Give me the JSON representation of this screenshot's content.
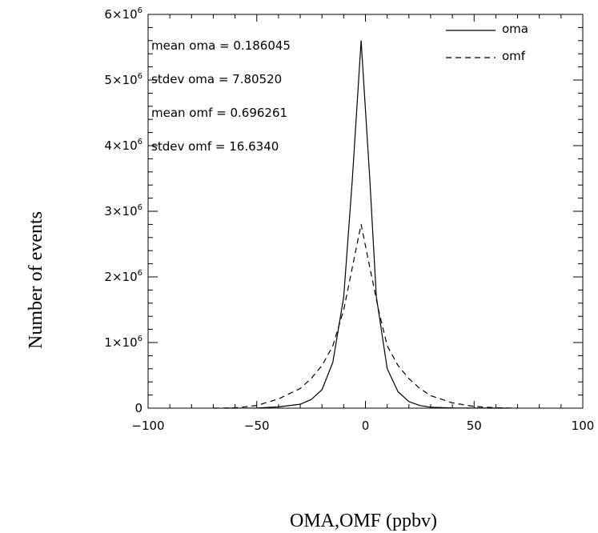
{
  "chart_data": {
    "type": "line",
    "xlabel": "OMA,OMF (ppbv)",
    "ylabel": "Number of events",
    "xlim": [
      -100,
      100
    ],
    "ylim": [
      0,
      6000000
    ],
    "grid": false,
    "legend_position": "top-right",
    "x_ticks": [
      {
        "value": -100,
        "label": "−100"
      },
      {
        "value": -50,
        "label": "−50"
      },
      {
        "value": 0,
        "label": "0"
      },
      {
        "value": 50,
        "label": "50"
      },
      {
        "value": 100,
        "label": "100"
      }
    ],
    "y_ticks": [
      {
        "value": 0,
        "label": "0",
        "exp": ""
      },
      {
        "value": 1000000,
        "label": "1×10",
        "exp": "6"
      },
      {
        "value": 2000000,
        "label": "2×10",
        "exp": "6"
      },
      {
        "value": 3000000,
        "label": "3×10",
        "exp": "6"
      },
      {
        "value": 4000000,
        "label": "4×10",
        "exp": "6"
      },
      {
        "value": 5000000,
        "label": "5×10",
        "exp": "6"
      },
      {
        "value": 6000000,
        "label": "6×10",
        "exp": "6"
      }
    ],
    "annotations": [
      "mean oma = 0.186045",
      "stdev oma = 7.80520",
      "mean omf = 0.696261",
      "stdev omf = 16.6340"
    ],
    "series": [
      {
        "name": "oma",
        "style": "solid",
        "x": [
          -65,
          -50,
          -40,
          -30,
          -25,
          -20,
          -15,
          -10,
          -6,
          -2,
          2,
          5,
          10,
          15,
          20,
          25,
          30,
          40,
          50,
          65
        ],
        "y": [
          0,
          3000,
          20000,
          60000,
          130000,
          280000,
          700000,
          1700000,
          3500000,
          5600000,
          3500000,
          1700000,
          600000,
          250000,
          100000,
          40000,
          15000,
          4000,
          1000,
          0
        ]
      },
      {
        "name": "omf",
        "style": "dashed",
        "x": [
          -70,
          -60,
          -50,
          -40,
          -30,
          -25,
          -20,
          -15,
          -10,
          -6,
          -2,
          2,
          6,
          10,
          15,
          20,
          25,
          30,
          40,
          50,
          60,
          70
        ],
        "y": [
          0,
          5000,
          40000,
          140000,
          300000,
          450000,
          650000,
          950000,
          1500000,
          2150000,
          2800000,
          2150000,
          1500000,
          950000,
          650000,
          450000,
          300000,
          190000,
          80000,
          25000,
          6000,
          0
        ]
      }
    ]
  }
}
